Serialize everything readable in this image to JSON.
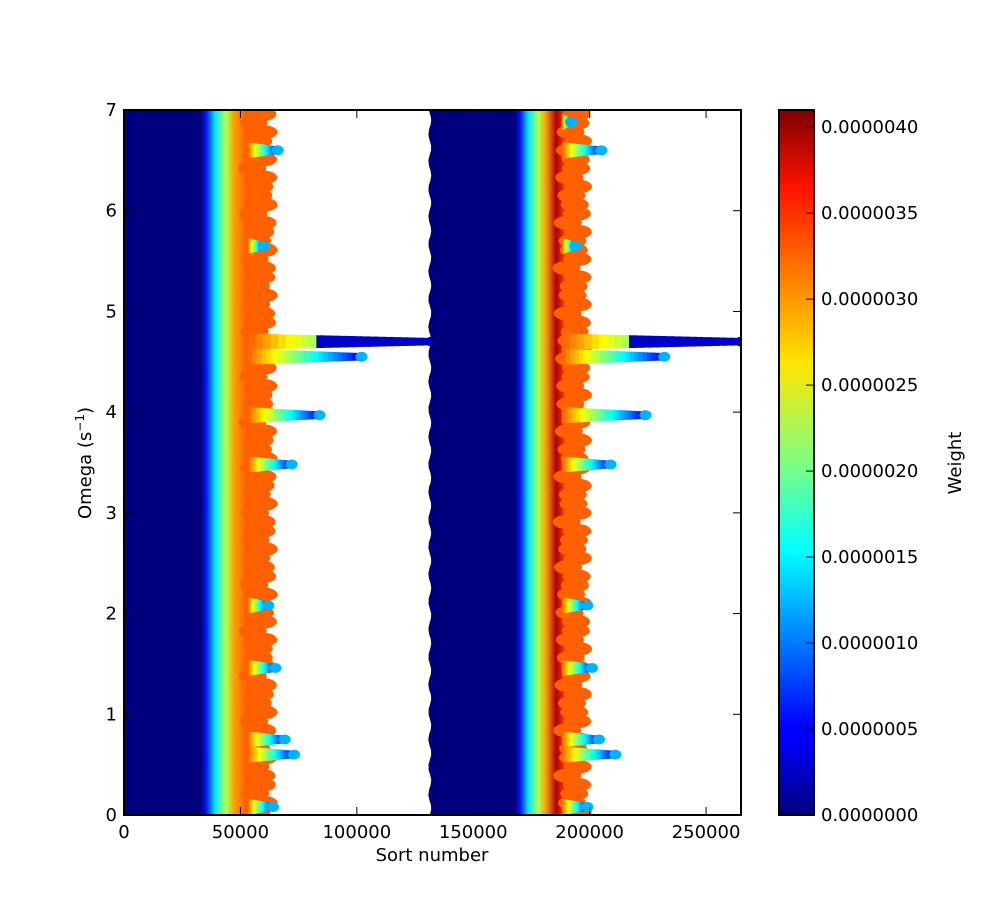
{
  "chart_data": {
    "type": "scatter",
    "xlabel": "Sort number",
    "ylabel": "Omega (s",
    "ylabel_sup": "−1",
    "ylabel_close": ")",
    "xlim": [
      0,
      265000
    ],
    "ylim": [
      0,
      7
    ],
    "x_ticks": [
      "0",
      "50000",
      "100000",
      "150000",
      "200000",
      "250000"
    ],
    "x_tick_values": [
      0,
      50000,
      100000,
      150000,
      200000,
      250000
    ],
    "y_ticks": [
      "0",
      "1",
      "2",
      "3",
      "4",
      "5",
      "6",
      "7"
    ],
    "y_tick_values": [
      0,
      1,
      2,
      3,
      4,
      5,
      6,
      7
    ],
    "colorbar": {
      "label": "Weight",
      "colormap": "jet",
      "range": [
        0,
        4.1e-06
      ],
      "ticks": [
        "0.0000000",
        "0.0000005",
        "0.0000010",
        "0.0000015",
        "0.0000020",
        "0.0000025",
        "0.0000030",
        "0.0000035",
        "0.0000040"
      ],
      "tick_values": [
        0,
        5e-07,
        1e-06,
        1.5e-06,
        2e-06,
        2.5e-06,
        3e-06,
        3.5e-06,
        4e-06
      ]
    },
    "blocks": [
      {
        "x_start": 0,
        "zero_weight_until": 35000,
        "band_center": 47000,
        "band_edge": 55000,
        "peak_weight": 3.2e-06,
        "extensions": [
          {
            "omega": 6.6,
            "x_end": 66000
          },
          {
            "omega": 5.65,
            "x_end": 60000
          },
          {
            "omega": 4.7,
            "x_end": 132000
          },
          {
            "omega": 4.55,
            "x_end": 102000
          },
          {
            "omega": 3.97,
            "x_end": 84000
          },
          {
            "omega": 3.48,
            "x_end": 72000
          },
          {
            "omega": 2.08,
            "x_end": 62000
          },
          {
            "omega": 1.46,
            "x_end": 65000
          },
          {
            "omega": 0.75,
            "x_end": 69000
          },
          {
            "omega": 0.6,
            "x_end": 73000
          },
          {
            "omega": 0.08,
            "x_end": 64000
          }
        ]
      },
      {
        "x_start": 132000,
        "zero_weight_until": 170000,
        "band_center": 180000,
        "band_edge": 190000,
        "peak_weight": 3.9e-06,
        "extensions": [
          {
            "omega": 6.88,
            "x_end": 192000
          },
          {
            "omega": 6.6,
            "x_end": 205000
          },
          {
            "omega": 5.65,
            "x_end": 194000
          },
          {
            "omega": 4.7,
            "x_end": 265000
          },
          {
            "omega": 4.55,
            "x_end": 232000
          },
          {
            "omega": 3.97,
            "x_end": 224000
          },
          {
            "omega": 3.48,
            "x_end": 209000
          },
          {
            "omega": 2.08,
            "x_end": 199000
          },
          {
            "omega": 1.46,
            "x_end": 201000
          },
          {
            "omega": 0.75,
            "x_end": 204000
          },
          {
            "omega": 0.6,
            "x_end": 211000
          },
          {
            "omega": 0.08,
            "x_end": 199000
          }
        ]
      }
    ]
  }
}
